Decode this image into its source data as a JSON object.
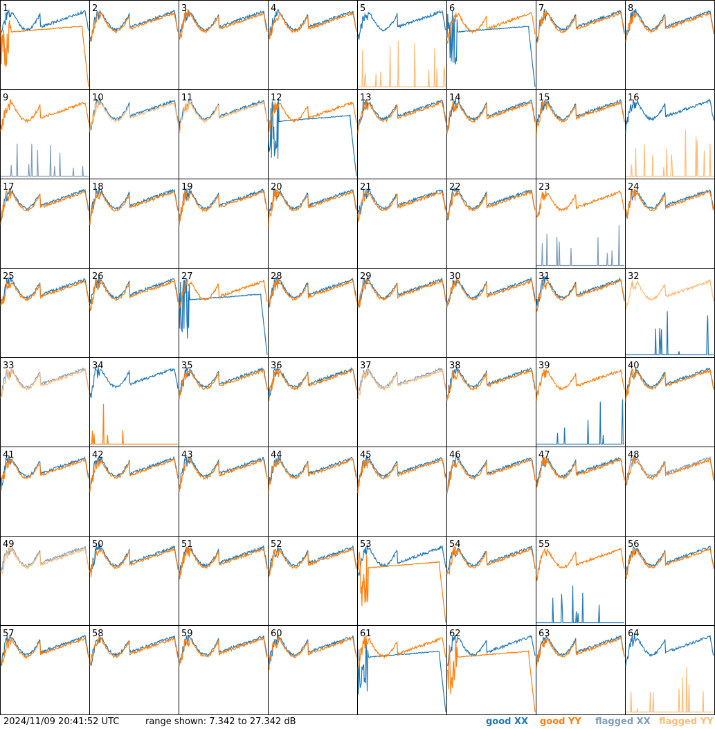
{
  "footer": {
    "timestamp": "2024/11/09 20:41:52 UTC",
    "range_text": "range shown: 7.342 to 27.342 dB"
  },
  "legend": {
    "good_xx": "good XX",
    "good_yy": "good YY",
    "flagged_xx": "flagged XX",
    "flagged_yy": "flagged YY"
  },
  "colors": {
    "good_xx": "#1f77b4",
    "good_yy": "#ff7f0e",
    "flagged_xx": "#7f9db9",
    "flagged_yy": "#ffbb78"
  },
  "chart_data": {
    "type": "line",
    "layout": "8x8 small multiples of per-antenna spectra",
    "ylim_db": [
      7.342,
      27.342
    ],
    "panels": [
      {
        "label": "1",
        "xx": "good",
        "yy": "good",
        "xx_shape": "normal",
        "yy_shape": "plateau"
      },
      {
        "label": "2",
        "xx": "good",
        "yy": "good",
        "xx_shape": "normal",
        "yy_shape": "normal"
      },
      {
        "label": "3",
        "xx": "good",
        "yy": "good",
        "xx_shape": "normal",
        "yy_shape": "normal"
      },
      {
        "label": "4",
        "xx": "good",
        "yy": "good",
        "xx_shape": "normal",
        "yy_shape": "normal"
      },
      {
        "label": "5",
        "xx": "good",
        "yy": "flagged",
        "xx_shape": "normal",
        "yy_shape": "spikes"
      },
      {
        "label": "6",
        "xx": "good",
        "yy": "good",
        "xx_shape": "plateau",
        "yy_shape": "normal"
      },
      {
        "label": "7",
        "xx": "good",
        "yy": "good",
        "xx_shape": "normal",
        "yy_shape": "normal"
      },
      {
        "label": "8",
        "xx": "good",
        "yy": "good",
        "xx_shape": "normal",
        "yy_shape": "normal"
      },
      {
        "label": "9",
        "xx": "flagged",
        "yy": "good",
        "xx_shape": "spikes",
        "yy_shape": "normal"
      },
      {
        "label": "10",
        "xx": "good",
        "yy": "flagged",
        "xx_shape": "normal",
        "yy_shape": "normal"
      },
      {
        "label": "11",
        "xx": "good",
        "yy": "flagged",
        "xx_shape": "normal",
        "yy_shape": "normal"
      },
      {
        "label": "12",
        "xx": "good",
        "yy": "good",
        "xx_shape": "plateau",
        "yy_shape": "normal"
      },
      {
        "label": "13",
        "xx": "good",
        "yy": "good",
        "xx_shape": "normal",
        "yy_shape": "normal"
      },
      {
        "label": "14",
        "xx": "good",
        "yy": "good",
        "xx_shape": "normal",
        "yy_shape": "normal"
      },
      {
        "label": "15",
        "xx": "good",
        "yy": "good",
        "xx_shape": "normal",
        "yy_shape": "normal"
      },
      {
        "label": "16",
        "xx": "good",
        "yy": "flagged",
        "xx_shape": "normal",
        "yy_shape": "spikes"
      },
      {
        "label": "17",
        "xx": "good",
        "yy": "good",
        "xx_shape": "normal",
        "yy_shape": "normal"
      },
      {
        "label": "18",
        "xx": "good",
        "yy": "good",
        "xx_shape": "normal",
        "yy_shape": "normal"
      },
      {
        "label": "19",
        "xx": "good",
        "yy": "good",
        "xx_shape": "normal",
        "yy_shape": "normal"
      },
      {
        "label": "20",
        "xx": "good",
        "yy": "good",
        "xx_shape": "normal",
        "yy_shape": "normal"
      },
      {
        "label": "21",
        "xx": "good",
        "yy": "good",
        "xx_shape": "normal",
        "yy_shape": "normal"
      },
      {
        "label": "22",
        "xx": "good",
        "yy": "good",
        "xx_shape": "normal",
        "yy_shape": "normal"
      },
      {
        "label": "23",
        "xx": "flagged",
        "yy": "good",
        "xx_shape": "spikes",
        "yy_shape": "normal"
      },
      {
        "label": "24",
        "xx": "good",
        "yy": "good",
        "xx_shape": "normal",
        "yy_shape": "normal"
      },
      {
        "label": "25",
        "xx": "good",
        "yy": "good",
        "xx_shape": "normal",
        "yy_shape": "normal"
      },
      {
        "label": "26",
        "xx": "good",
        "yy": "good",
        "xx_shape": "normal",
        "yy_shape": "normal"
      },
      {
        "label": "27",
        "xx": "good",
        "yy": "good",
        "xx_shape": "plateau",
        "yy_shape": "normal"
      },
      {
        "label": "28",
        "xx": "good",
        "yy": "good",
        "xx_shape": "normal",
        "yy_shape": "normal"
      },
      {
        "label": "29",
        "xx": "good",
        "yy": "good",
        "xx_shape": "normal",
        "yy_shape": "normal"
      },
      {
        "label": "30",
        "xx": "good",
        "yy": "good",
        "xx_shape": "normal",
        "yy_shape": "normal"
      },
      {
        "label": "31",
        "xx": "good",
        "yy": "good",
        "xx_shape": "normal",
        "yy_shape": "normal"
      },
      {
        "label": "32",
        "xx": "good",
        "yy": "flagged",
        "xx_shape": "spikes",
        "yy_shape": "normal"
      },
      {
        "label": "33",
        "xx": "flagged",
        "yy": "flagged",
        "xx_shape": "normal",
        "yy_shape": "normal"
      },
      {
        "label": "34",
        "xx": "good",
        "yy": "good",
        "xx_shape": "normal",
        "yy_shape": "spikes"
      },
      {
        "label": "35",
        "xx": "good",
        "yy": "good",
        "xx_shape": "normal",
        "yy_shape": "normal"
      },
      {
        "label": "36",
        "xx": "good",
        "yy": "good",
        "xx_shape": "normal",
        "yy_shape": "normal"
      },
      {
        "label": "37",
        "xx": "flagged",
        "yy": "flagged",
        "xx_shape": "normal",
        "yy_shape": "normal"
      },
      {
        "label": "38",
        "xx": "good",
        "yy": "good",
        "xx_shape": "normal",
        "yy_shape": "normal"
      },
      {
        "label": "39",
        "xx": "good",
        "yy": "good",
        "xx_shape": "spikes",
        "yy_shape": "normal"
      },
      {
        "label": "40",
        "xx": "good",
        "yy": "good",
        "xx_shape": "normal",
        "yy_shape": "normal"
      },
      {
        "label": "41",
        "xx": "good",
        "yy": "good",
        "xx_shape": "normal",
        "yy_shape": "normal"
      },
      {
        "label": "42",
        "xx": "good",
        "yy": "good",
        "xx_shape": "normal",
        "yy_shape": "normal"
      },
      {
        "label": "43",
        "xx": "good",
        "yy": "good",
        "xx_shape": "normal",
        "yy_shape": "normal"
      },
      {
        "label": "44",
        "xx": "good",
        "yy": "good",
        "xx_shape": "normal",
        "yy_shape": "normal"
      },
      {
        "label": "45",
        "xx": "good",
        "yy": "good",
        "xx_shape": "normal",
        "yy_shape": "normal"
      },
      {
        "label": "46",
        "xx": "good",
        "yy": "good",
        "xx_shape": "normal",
        "yy_shape": "normal"
      },
      {
        "label": "47",
        "xx": "good",
        "yy": "good",
        "xx_shape": "normal",
        "yy_shape": "normal"
      },
      {
        "label": "48",
        "xx": "flagged",
        "yy": "good",
        "xx_shape": "normal",
        "yy_shape": "normal"
      },
      {
        "label": "49",
        "xx": "flagged",
        "yy": "flagged",
        "xx_shape": "normal",
        "yy_shape": "normal"
      },
      {
        "label": "50",
        "xx": "good",
        "yy": "good",
        "xx_shape": "normal",
        "yy_shape": "normal"
      },
      {
        "label": "51",
        "xx": "good",
        "yy": "good",
        "xx_shape": "normal",
        "yy_shape": "normal"
      },
      {
        "label": "52",
        "xx": "good",
        "yy": "good",
        "xx_shape": "normal",
        "yy_shape": "normal"
      },
      {
        "label": "53",
        "xx": "good",
        "yy": "good",
        "xx_shape": "normal",
        "yy_shape": "plateau"
      },
      {
        "label": "54",
        "xx": "good",
        "yy": "good",
        "xx_shape": "normal",
        "yy_shape": "normal"
      },
      {
        "label": "55",
        "xx": "good",
        "yy": "good",
        "xx_shape": "spikes",
        "yy_shape": "normal"
      },
      {
        "label": "56",
        "xx": "good",
        "yy": "good",
        "xx_shape": "normal",
        "yy_shape": "normal"
      },
      {
        "label": "57",
        "xx": "good",
        "yy": "good",
        "xx_shape": "normal",
        "yy_shape": "normal"
      },
      {
        "label": "58",
        "xx": "good",
        "yy": "good",
        "xx_shape": "normal",
        "yy_shape": "normal"
      },
      {
        "label": "59",
        "xx": "good",
        "yy": "good",
        "xx_shape": "normal",
        "yy_shape": "normal"
      },
      {
        "label": "60",
        "xx": "good",
        "yy": "good",
        "xx_shape": "normal",
        "yy_shape": "normal"
      },
      {
        "label": "61",
        "xx": "good",
        "yy": "good",
        "xx_shape": "plateau",
        "yy_shape": "normal"
      },
      {
        "label": "62",
        "xx": "good",
        "yy": "good",
        "xx_shape": "normal",
        "yy_shape": "plateau"
      },
      {
        "label": "63",
        "xx": "good",
        "yy": "good",
        "xx_shape": "normal",
        "yy_shape": "normal"
      },
      {
        "label": "64",
        "xx": "good",
        "yy": "flagged",
        "xx_shape": "normal",
        "yy_shape": "spikes"
      }
    ]
  }
}
